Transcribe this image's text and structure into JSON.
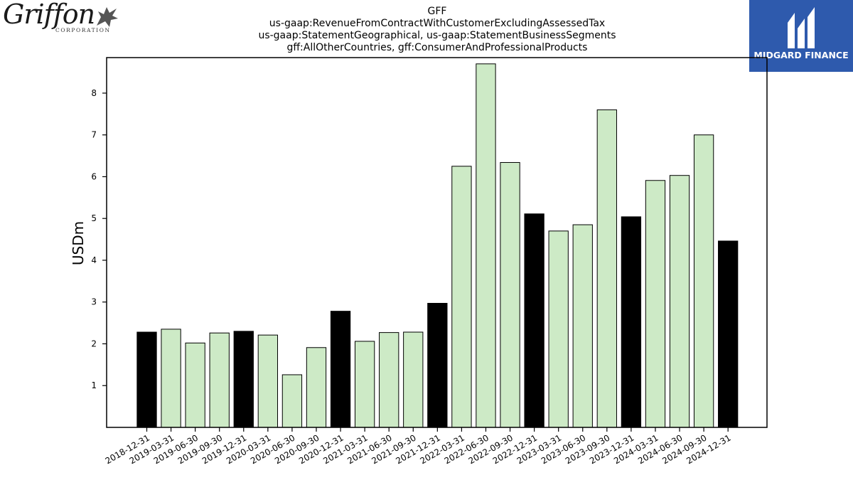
{
  "logos": {
    "left": {
      "name": "Griffon",
      "sub": "CORPORATION"
    },
    "right": {
      "name": "MIDGARD FINANCE",
      "color": "#2e5aad"
    }
  },
  "chart_data": {
    "type": "bar",
    "title": [
      "GFF",
      "us-gaap:RevenueFromContractWithCustomerExcludingAssessedTax",
      "us-gaap:StatementGeographical, us-gaap:StatementBusinessSegments",
      "gff:AllOtherCountries, gff:ConsumerAndProfessionalProducts"
    ],
    "ylabel": "USDm",
    "ylim": [
      0,
      8.85
    ],
    "yticks": [
      1,
      2,
      3,
      4,
      5,
      6,
      7,
      8
    ],
    "grid": false,
    "legend": "none",
    "colors": {
      "quarter": "#cdeac6",
      "fiscal_year_end": "#000000",
      "edge": "#000000"
    },
    "categories": [
      "2018-12-31",
      "2019-03-31",
      "2019-06-30",
      "2019-09-30",
      "2019-12-31",
      "2020-03-31",
      "2020-06-30",
      "2020-09-30",
      "2020-12-31",
      "2021-03-31",
      "2021-06-30",
      "2021-09-30",
      "2021-12-31",
      "2022-03-31",
      "2022-06-30",
      "2022-09-30",
      "2022-12-31",
      "2023-03-31",
      "2023-06-30",
      "2023-09-30",
      "2023-12-31",
      "2024-03-31",
      "2024-06-30",
      "2024-09-30",
      "2024-12-31"
    ],
    "values": [
      2.28,
      2.35,
      2.02,
      2.26,
      2.3,
      2.21,
      1.26,
      1.91,
      2.78,
      2.06,
      2.27,
      2.28,
      2.97,
      6.25,
      8.7,
      6.34,
      5.11,
      4.7,
      4.85,
      7.6,
      5.04,
      5.91,
      6.03,
      7.0,
      4.46
    ],
    "highlight": [
      true,
      false,
      false,
      false,
      true,
      false,
      false,
      false,
      true,
      false,
      false,
      false,
      true,
      false,
      false,
      false,
      true,
      false,
      false,
      false,
      true,
      false,
      false,
      false,
      true
    ]
  }
}
